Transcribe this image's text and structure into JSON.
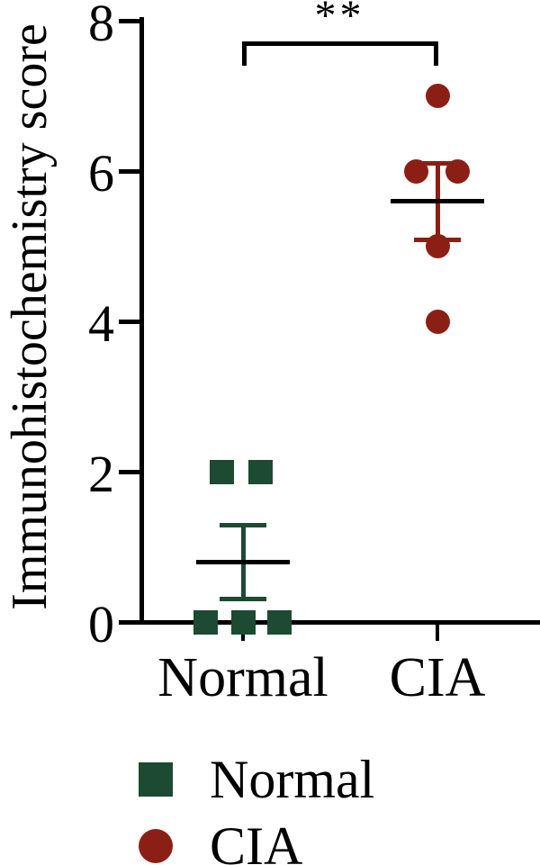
{
  "figure_title": "",
  "chart_data": {
    "type": "scatter",
    "title": "",
    "xlabel": "",
    "ylabel": "Immunohistochemistry score",
    "ylim": [
      0,
      8
    ],
    "yticks": [
      0,
      2,
      4,
      6,
      8
    ],
    "grid": "off",
    "categories": [
      "Normal",
      "CIA"
    ],
    "significance": {
      "label": "**",
      "groups": [
        "Normal",
        "CIA"
      ]
    },
    "error_bar_type": "mean ± SEM",
    "series": [
      {
        "name": "Normal",
        "marker": "square",
        "color": "#1d4a32",
        "values": [
          2,
          2,
          0,
          0,
          0
        ],
        "points": [
          {
            "v": 2,
            "dx": -24
          },
          {
            "v": 2,
            "dx": 19
          },
          {
            "v": 0,
            "dx": -42
          },
          {
            "v": 0,
            "dx": 0
          },
          {
            "v": 0,
            "dx": 40
          }
        ],
        "mean": 0.8,
        "sem": 0.49
      },
      {
        "name": "CIA",
        "marker": "circle",
        "color": "#8c1f15",
        "values": [
          7,
          6,
          6,
          5,
          4
        ],
        "points": [
          {
            "v": 7,
            "dx": 0
          },
          {
            "v": 6,
            "dx": -24
          },
          {
            "v": 6,
            "dx": 22
          },
          {
            "v": 5,
            "dx": 0
          },
          {
            "v": 4,
            "dx": 0
          }
        ],
        "mean": 5.6,
        "sem": 0.51
      }
    ],
    "legend": [
      {
        "label": "Normal",
        "marker": "square",
        "color": "#1d4a32"
      },
      {
        "label": "CIA",
        "marker": "circle",
        "color": "#8c1f15"
      }
    ],
    "legend_position": "bottom",
    "axis_color": "#000000",
    "mean_line_color": "#000000"
  }
}
